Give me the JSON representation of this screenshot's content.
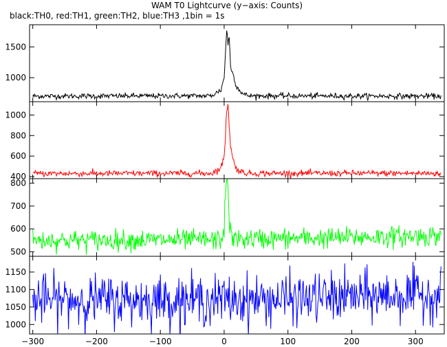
{
  "chart_data": {
    "type": "line",
    "title": "WAM T0 Lightcurve (y−axis: Counts)",
    "subtitle": "black:TH0, red:TH1, green:TH2, blue:TH3 ,1bin = 1s",
    "xlim": [
      -305,
      345
    ],
    "x_ticks": [
      -300,
      -200,
      -100,
      0,
      100,
      200,
      300
    ],
    "x_tick_labels": [
      "−300",
      "−200",
      "−100",
      "0",
      "100",
      "200",
      "300"
    ],
    "x_step": 1,
    "panels": [
      {
        "name": "TH0",
        "color": "#000000",
        "ylim": [
          610,
          1860
        ],
        "y_ticks": [
          1000,
          1500
        ],
        "y_tick_labels": [
          "1000",
          "1500"
        ],
        "baseline": 700,
        "noise": 22,
        "profile": [
          [
            -300,
            700
          ],
          [
            -20,
            705
          ],
          [
            -5,
            800
          ],
          [
            0,
            1000
          ],
          [
            2,
            1400
          ],
          [
            4,
            1800
          ],
          [
            6,
            1550
          ],
          [
            8,
            1650
          ],
          [
            10,
            1200
          ],
          [
            14,
            1050
          ],
          [
            20,
            850
          ],
          [
            30,
            730
          ],
          [
            40,
            705
          ],
          [
            340,
            700
          ]
        ]
      },
      {
        "name": "TH1",
        "color": "#ff0000",
        "ylim": [
          380,
          1130
        ],
        "y_ticks": [
          400,
          600,
          800,
          1000
        ],
        "y_tick_labels": [
          "400",
          "600",
          "800",
          "1000"
        ],
        "baseline": 430,
        "noise": 15,
        "profile": [
          [
            -300,
            430
          ],
          [
            -20,
            432
          ],
          [
            -5,
            480
          ],
          [
            0,
            600
          ],
          [
            2,
            800
          ],
          [
            4,
            1050
          ],
          [
            6,
            1120
          ],
          [
            8,
            900
          ],
          [
            10,
            700
          ],
          [
            14,
            560
          ],
          [
            20,
            470
          ],
          [
            30,
            440
          ],
          [
            40,
            432
          ],
          [
            340,
            432
          ]
        ]
      },
      {
        "name": "TH2",
        "color": "#00ff00",
        "ylim": [
          480,
          820
        ],
        "y_ticks": [
          500,
          600,
          700,
          800
        ],
        "y_tick_labels": [
          "500",
          "600",
          "700",
          "800"
        ],
        "baseline": 550,
        "noise": 22,
        "profile": [
          [
            -300,
            550
          ],
          [
            -5,
            552
          ],
          [
            0,
            600
          ],
          [
            2,
            760
          ],
          [
            4,
            800
          ],
          [
            6,
            790
          ],
          [
            8,
            650
          ],
          [
            10,
            580
          ],
          [
            14,
            555
          ],
          [
            150,
            560
          ],
          [
            340,
            570
          ]
        ]
      },
      {
        "name": "TH3",
        "color": "#0000ff",
        "ylim": [
          973,
          1195
        ],
        "y_ticks": [
          1000,
          1050,
          1100,
          1150
        ],
        "y_tick_labels": [
          "1000",
          "1050",
          "1100",
          "1150"
        ],
        "baseline": 1070,
        "noise": 35,
        "profile": [
          [
            -300,
            1070
          ],
          [
            0,
            1070
          ],
          [
            100,
            1072
          ],
          [
            200,
            1080
          ],
          [
            340,
            1085
          ]
        ]
      }
    ]
  }
}
